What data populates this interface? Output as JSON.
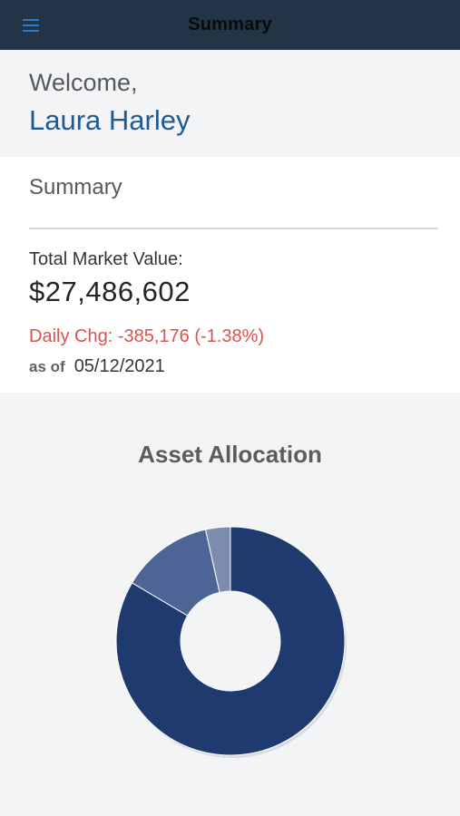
{
  "header": {
    "title": "Summary",
    "menu_icon": "hamburger-menu-icon"
  },
  "welcome": {
    "greeting": "Welcome,",
    "name": "Laura Harley"
  },
  "summary": {
    "heading": "Summary",
    "total_market_value_label": "Total Market Value:",
    "total_market_value": "$27,486,602",
    "daily_change": "Daily Chg: -385,176 (-1.38%)",
    "as_of_label": "as of",
    "as_of_date": "05/12/2021"
  },
  "colors": {
    "header_bg": "#243447",
    "name_blue": "#1f5b93",
    "negative_red": "#d9534f",
    "slice_primary": "#1f3a6e",
    "slice_secondary": "#4d6596",
    "slice_tertiary": "#7d8db0"
  },
  "chart_data": {
    "type": "pie",
    "title": "Asset Allocation",
    "slices": [
      {
        "value": 83.5,
        "color": "#1f3a6e"
      },
      {
        "value": 13.0,
        "color": "#4d6596"
      },
      {
        "value": 3.5,
        "color": "#7d8db0"
      }
    ]
  }
}
